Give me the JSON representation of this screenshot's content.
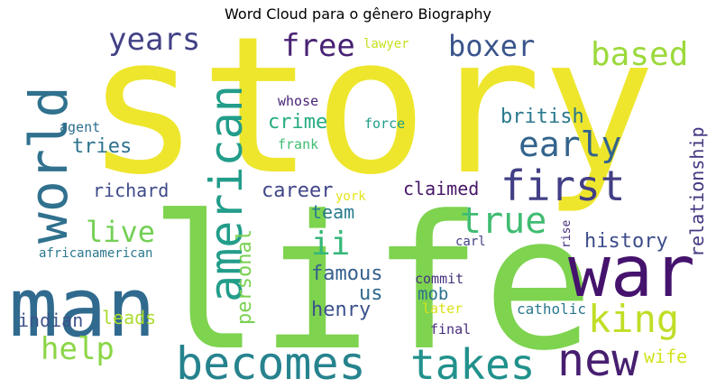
{
  "chart_data": {
    "type": "wordcloud",
    "title": "Word Cloud para o gênero Biography",
    "words": [
      {
        "text": "story",
        "weight": 100,
        "color": "#eee62d"
      },
      {
        "text": "life",
        "weight": 92,
        "color": "#7ed34f"
      },
      {
        "text": "man",
        "weight": 46,
        "color": "#306a8e"
      },
      {
        "text": "war",
        "weight": 42,
        "color": "#45136d"
      },
      {
        "text": "world",
        "weight": 36,
        "color": "#30718e"
      },
      {
        "text": "becomes",
        "weight": 26,
        "color": "#26838e"
      },
      {
        "text": "american",
        "weight": 25,
        "color": "#229d8a"
      },
      {
        "text": "takes",
        "weight": 24,
        "color": "#21918c"
      },
      {
        "text": "new",
        "weight": 22,
        "color": "#471f70"
      },
      {
        "text": "first",
        "weight": 22,
        "color": "#423f85"
      },
      {
        "text": "king",
        "weight": 21,
        "color": "#bfde27"
      },
      {
        "text": "early",
        "weight": 20,
        "color": "#33648d"
      },
      {
        "text": "true",
        "weight": 19,
        "color": "#40bc72"
      },
      {
        "text": "help",
        "weight": 18,
        "color": "#8bd646"
      },
      {
        "text": "based",
        "weight": 17,
        "color": "#9bd93c"
      },
      {
        "text": "boxer",
        "weight": 16,
        "color": "#3a548c"
      },
      {
        "text": "years",
        "weight": 16,
        "color": "#424186"
      },
      {
        "text": "free",
        "weight": 16,
        "color": "#482374"
      },
      {
        "text": "live",
        "weight": 15,
        "color": "#74d055"
      },
      {
        "text": "ii",
        "weight": 15,
        "color": "#35b779"
      },
      {
        "text": "history",
        "weight": 11,
        "color": "#3d4d8a"
      },
      {
        "text": "personal",
        "weight": 11,
        "color": "#7ad151"
      },
      {
        "text": "famous",
        "weight": 11,
        "color": "#355f8d"
      },
      {
        "text": "relationship",
        "weight": 10,
        "color": "#453781"
      },
      {
        "text": "british",
        "weight": 10,
        "color": "#2a788e"
      },
      {
        "text": "career",
        "weight": 10,
        "color": "#404688"
      },
      {
        "text": "henry",
        "weight": 10,
        "color": "#3b518b"
      },
      {
        "text": "crime",
        "weight": 10,
        "color": "#25ab82"
      },
      {
        "text": "tries",
        "weight": 10,
        "color": "#2c728e"
      },
      {
        "text": "team",
        "weight": 10,
        "color": "#287c8e"
      },
      {
        "text": "richard",
        "weight": 9,
        "color": "#3e4a89"
      },
      {
        "text": "indian",
        "weight": 9,
        "color": "#3b528b"
      },
      {
        "text": "leads",
        "weight": 9,
        "color": "#addc30"
      },
      {
        "text": "us",
        "weight": 9,
        "color": "#31688e"
      },
      {
        "text": "claimed",
        "weight": 9,
        "color": "#481668"
      },
      {
        "text": "mob",
        "weight": 9,
        "color": "#2c718e"
      },
      {
        "text": "wife",
        "weight": 8,
        "color": "#d2e21b"
      },
      {
        "text": "catholic",
        "weight": 7,
        "color": "#2a788e"
      },
      {
        "text": "commit",
        "weight": 6,
        "color": "#46337e"
      },
      {
        "text": "final",
        "weight": 6,
        "color": "#472c7a"
      },
      {
        "text": "later",
        "weight": 6,
        "color": "#d8e219"
      },
      {
        "text": "africanamerican",
        "weight": 6,
        "color": "#2a788e"
      },
      {
        "text": "carl",
        "weight": 6,
        "color": "#424086"
      },
      {
        "text": "rise",
        "weight": 5,
        "color": "#472d7b"
      },
      {
        "text": "agent",
        "weight": 5,
        "color": "#2e6e8e"
      },
      {
        "text": "whose",
        "weight": 5,
        "color": "#482576"
      },
      {
        "text": "force",
        "weight": 5,
        "color": "#1f9e89"
      },
      {
        "text": "frank",
        "weight": 5,
        "color": "#40bd72"
      },
      {
        "text": "lawyer",
        "weight": 5,
        "color": "#c8e020"
      },
      {
        "text": "york",
        "weight": 5,
        "color": "#e5e419"
      }
    ]
  }
}
